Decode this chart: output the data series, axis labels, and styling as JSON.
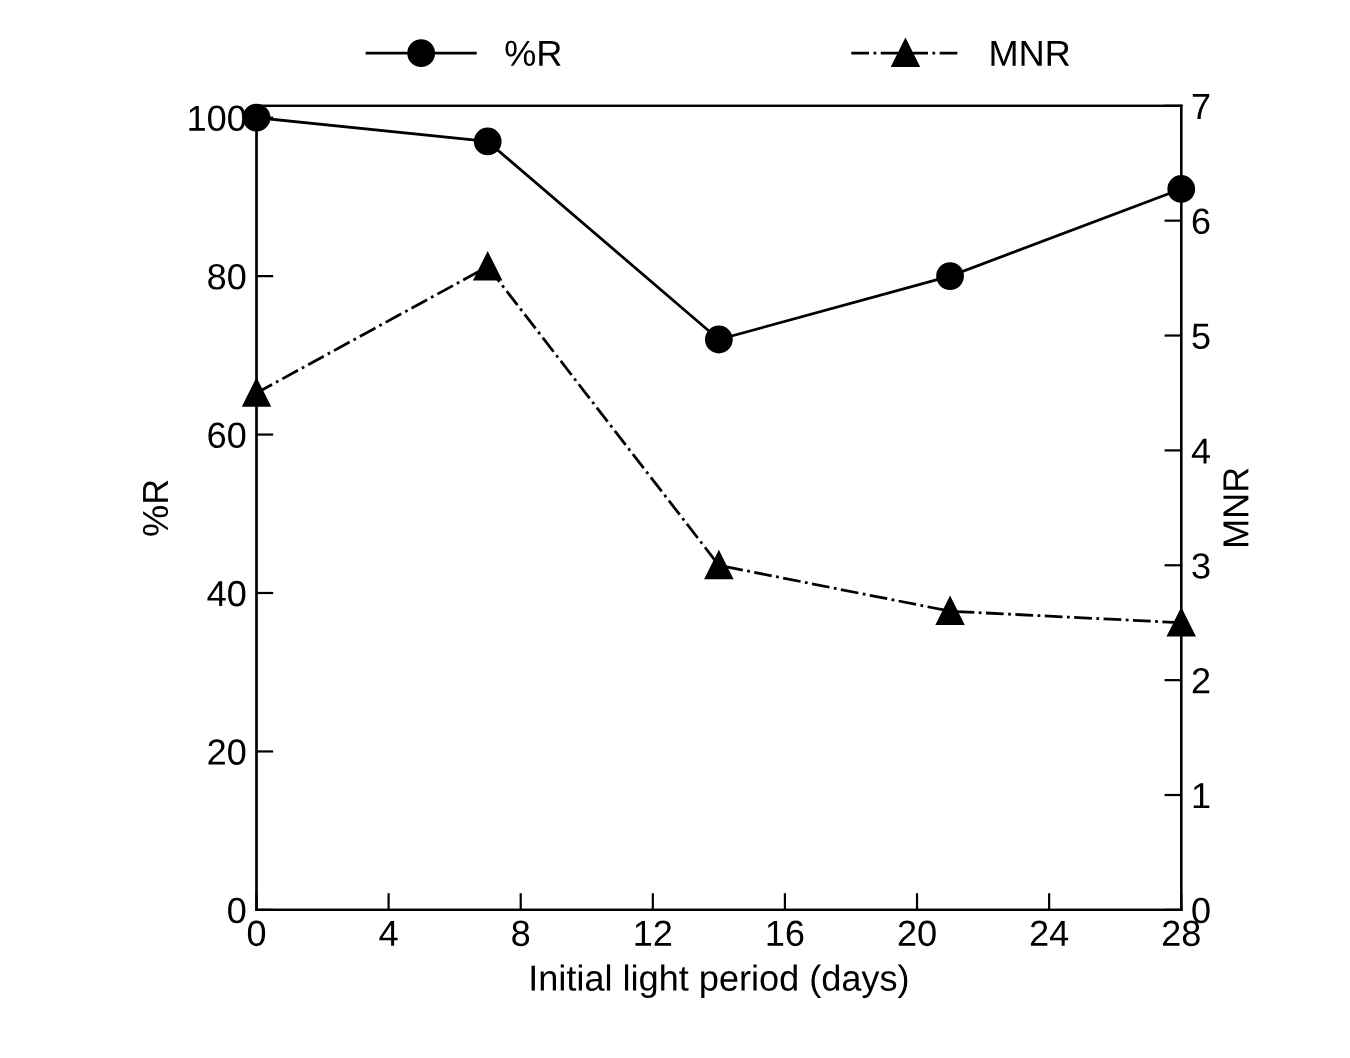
{
  "chart_data": {
    "type": "line",
    "xlabel": "Initial light period (days)",
    "ylabel": "%R",
    "y2label": "MNR",
    "x": [
      0,
      7,
      14,
      21,
      28
    ],
    "series": [
      {
        "name": "%R",
        "color": "#000000",
        "values": [
          100,
          97,
          72,
          80,
          91
        ],
        "marker": "circle",
        "line_style": "solid"
      },
      {
        "name": "MNR",
        "color": "#000000",
        "values": [
          4.5,
          5.6,
          3.0,
          2.6,
          2.5
        ],
        "marker": "triangle",
        "line_style": "dashed",
        "axis": "y2"
      }
    ],
    "xlim": [
      0,
      28
    ],
    "xticks": [
      0,
      4,
      8,
      12,
      16,
      20,
      24,
      28
    ],
    "ylim": [
      0,
      101.5
    ],
    "yticks": [
      0,
      20,
      40,
      60,
      80,
      100
    ],
    "y2lim": [
      0,
      7
    ],
    "y2ticks": [
      0,
      1,
      2,
      3,
      4,
      5,
      6,
      7
    ],
    "grid": false,
    "legend": "top"
  }
}
